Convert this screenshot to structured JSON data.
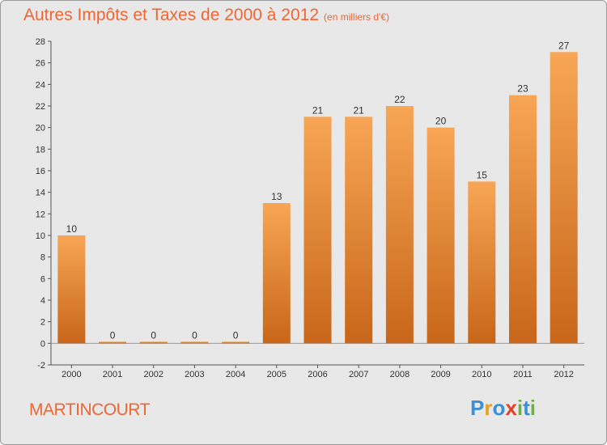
{
  "chart_data": {
    "type": "bar",
    "title": "Autres Impôts et Taxes de 2000 à 2012",
    "subtitle": "(en milliers d'€)",
    "categories": [
      "2000",
      "2001",
      "2002",
      "2003",
      "2004",
      "2005",
      "2006",
      "2007",
      "2008",
      "2009",
      "2010",
      "2011",
      "2012"
    ],
    "values": [
      10,
      0,
      0,
      0,
      0,
      13,
      21,
      21,
      22,
      20,
      15,
      23,
      27
    ],
    "ylim": [
      -2,
      28
    ],
    "yticks": [
      -2,
      0,
      2,
      4,
      6,
      8,
      10,
      12,
      14,
      16,
      18,
      20,
      22,
      24,
      26,
      28
    ],
    "grid": false,
    "bar_color": "#f0913a"
  },
  "footer": {
    "commune": "MARTINCOURT"
  },
  "logo": {
    "letters": [
      {
        "char": "P",
        "color": "#3a8fd6"
      },
      {
        "char": "r",
        "color": "#e8a020"
      },
      {
        "char": "o",
        "color": "#3a8fd6"
      },
      {
        "char": "x",
        "color": "#e0402a"
      },
      {
        "char": "i",
        "color": "#6cb33f"
      },
      {
        "char": "t",
        "color": "#3a8fd6"
      },
      {
        "char": "i",
        "color": "#6cb33f"
      }
    ]
  }
}
